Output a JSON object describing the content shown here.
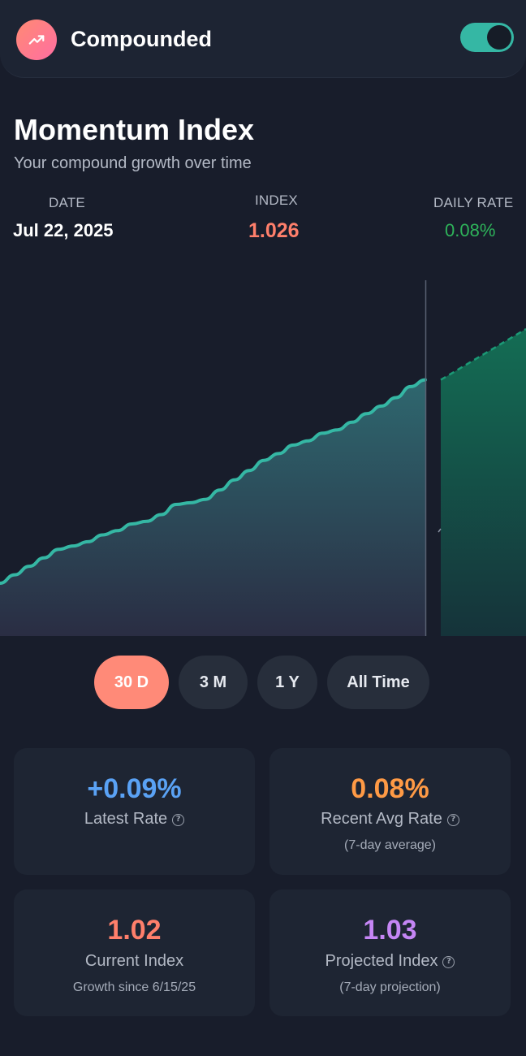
{
  "header": {
    "app_title": "Compounded",
    "logo_icon": "trending-up-icon",
    "toggle_on": true
  },
  "page": {
    "title": "Momentum Index",
    "subtitle": "Your compound growth over time"
  },
  "stats": {
    "date_label": "DATE",
    "date_value": "Jul 22, 2025",
    "index_label": "INDEX",
    "index_value": "1.026",
    "rate_label": "DAILY RATE",
    "rate_value": "0.08%"
  },
  "ranges": [
    {
      "label": "30 D",
      "active": true
    },
    {
      "label": "3 M",
      "active": false
    },
    {
      "label": "1 Y",
      "active": false
    },
    {
      "label": "All Time",
      "active": false
    }
  ],
  "cards": {
    "latest_rate": {
      "value": "+0.09%",
      "label": "Latest Rate",
      "has_help": true
    },
    "recent_avg": {
      "value": "0.08%",
      "label": "Recent Avg Rate",
      "note": "(7-day average)",
      "has_help": true
    },
    "current_index": {
      "value": "1.02",
      "label": "Current Index",
      "note": "Growth since 6/15/25"
    },
    "projected_index": {
      "value": "1.03",
      "label": "Projected Index",
      "note": "(7-day projection)",
      "has_help": true
    }
  },
  "colors": {
    "accent_coral": "#ff8a78",
    "teal": "#35b7a4",
    "rate_green": "#2eb35a",
    "blue": "#5aa2f5",
    "orange": "#ff9a45",
    "purple": "#c586f5",
    "index_coral": "#ff7f6b"
  },
  "chart_data": {
    "type": "area",
    "series": [
      {
        "values": [
          1.0,
          1.001,
          1.002,
          1.003,
          1.004,
          1.0044,
          1.0049,
          1.0057,
          1.0062,
          1.007,
          1.0073,
          1.0081,
          1.0093,
          1.0095,
          1.0099,
          1.011,
          1.0122,
          1.0133,
          1.0145,
          1.0153,
          1.0163,
          1.0168,
          1.0177,
          1.0181,
          1.019,
          1.02,
          1.0209,
          1.0219,
          1.0232,
          1.024
        ]
      },
      {
        "values": [
          1.024,
          1.025,
          1.026,
          1.027,
          1.028,
          1.029,
          1.03
        ],
        "style": "dashed"
      }
    ],
    "marker_date": "Jul 22, 2025",
    "grid": false
  }
}
